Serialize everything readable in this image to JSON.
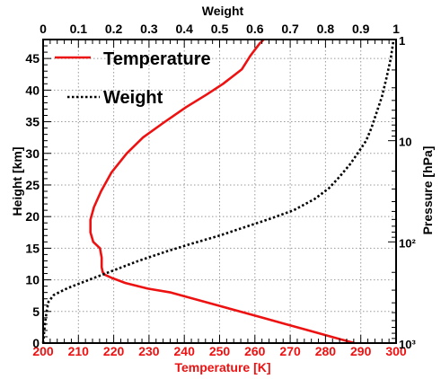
{
  "chart_data": {
    "type": "line",
    "title": "",
    "x_axis": {
      "label": "Temperature [K]",
      "range": [
        200,
        300
      ],
      "ticks": [
        "200",
        "210",
        "220",
        "230",
        "240",
        "250",
        "260",
        "270",
        "280",
        "290",
        "300"
      ],
      "color": "#ee1111"
    },
    "x2_axis": {
      "label": "Weight",
      "range": [
        0,
        1
      ],
      "ticks": [
        "0",
        "0.1",
        "0.2",
        "0.3",
        "0.4",
        "0.5",
        "0.6",
        "0.7",
        "0.8",
        "0.9",
        "1"
      ],
      "color": "#000000"
    },
    "y_axis": {
      "label": "Height [km]",
      "range": [
        0,
        48
      ],
      "ticks": [
        "0",
        "5",
        "10",
        "15",
        "20",
        "25",
        "30",
        "35",
        "40",
        "45"
      ]
    },
    "y2_axis": {
      "label": "Pressure [hPa]",
      "scale": "log",
      "ticks": [
        {
          "value": 1000,
          "label": "10³"
        },
        {
          "value": 100,
          "label": "10²"
        },
        {
          "value": 10,
          "label": "10"
        },
        {
          "value": 1,
          "label": "1"
        }
      ]
    },
    "grid": true,
    "legend_position": "top-left",
    "series": [
      {
        "name": "Temperature",
        "axis": "bottom",
        "color": "#ee1111",
        "style": "solid",
        "points": [
          [
            288.2,
            0
          ],
          [
            281.7,
            1
          ],
          [
            275.2,
            2
          ],
          [
            268.7,
            3
          ],
          [
            262.2,
            4
          ],
          [
            255.7,
            5
          ],
          [
            249.2,
            6
          ],
          [
            242.7,
            7
          ],
          [
            236.2,
            8
          ],
          [
            229.7,
            8.6
          ],
          [
            223.3,
            9.5
          ],
          [
            219.5,
            10.3
          ],
          [
            217.5,
            10.8
          ],
          [
            216.9,
            11.2
          ],
          [
            216.6,
            12
          ],
          [
            216.6,
            13.5
          ],
          [
            216.1,
            15
          ],
          [
            214.2,
            16
          ],
          [
            213.4,
            17.5
          ],
          [
            213.4,
            19.5
          ],
          [
            214.4,
            21.5
          ],
          [
            216.4,
            24
          ],
          [
            219.4,
            27
          ],
          [
            223.7,
            30
          ],
          [
            228.3,
            32.5
          ],
          [
            234,
            34.8
          ],
          [
            240.5,
            37.3
          ],
          [
            246.3,
            39.3
          ],
          [
            251,
            41
          ],
          [
            256.3,
            43.3
          ],
          [
            258.8,
            45.5
          ],
          [
            261.4,
            47.4
          ],
          [
            262.5,
            48
          ]
        ]
      },
      {
        "name": "Weight",
        "axis": "top",
        "color": "#000000",
        "style": "dotted",
        "points": [
          [
            0.0,
            0
          ],
          [
            0.005,
            3
          ],
          [
            0.01,
            5
          ],
          [
            0.015,
            6.5
          ],
          [
            0.03,
            7.6
          ],
          [
            0.07,
            8.7
          ],
          [
            0.13,
            10
          ],
          [
            0.2,
            11.5
          ],
          [
            0.27,
            13
          ],
          [
            0.35,
            14.5
          ],
          [
            0.42,
            15.7
          ],
          [
            0.5,
            17
          ],
          [
            0.57,
            18.3
          ],
          [
            0.64,
            19.6
          ],
          [
            0.71,
            21
          ],
          [
            0.77,
            22.8
          ],
          [
            0.81,
            24.5
          ],
          [
            0.84,
            26.3
          ],
          [
            0.87,
            28.3
          ],
          [
            0.895,
            30.3
          ],
          [
            0.915,
            32
          ],
          [
            0.93,
            34
          ],
          [
            0.945,
            36.5
          ],
          [
            0.96,
            39
          ],
          [
            0.973,
            42
          ],
          [
            0.985,
            45
          ],
          [
            0.993,
            48
          ]
        ]
      }
    ]
  }
}
